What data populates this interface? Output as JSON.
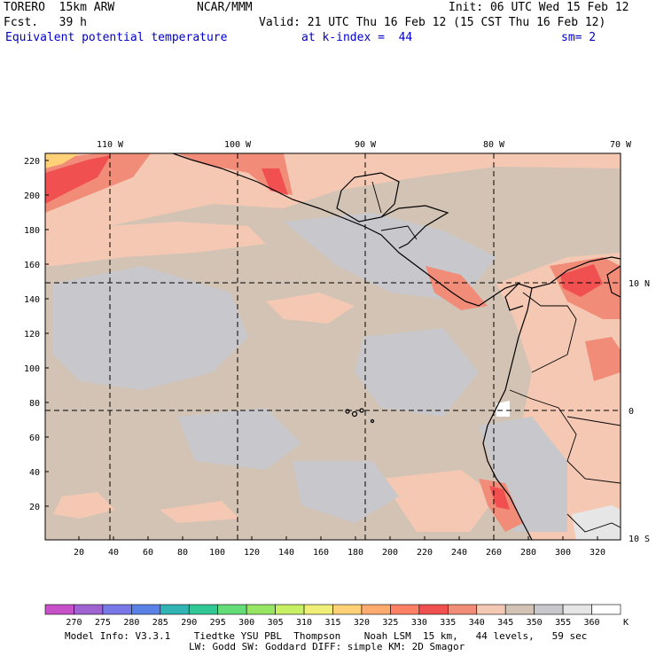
{
  "header": {
    "model": "TORERO  15km ARW",
    "org": "NCAR/MMM",
    "init": "Init: 06 UTC Wed 15 Feb 12",
    "fcst_label": "Fcst.   39 h",
    "valid": "Valid: 21 UTC Thu 16 Feb 12 (15 CST Thu 16 Feb 12)",
    "field": "Equivalent potential temperature",
    "level": "at k-index =  44",
    "smooth": "sm= 2"
  },
  "map": {
    "lon_labels": [
      "110 W",
      "100 W",
      "90 W",
      "80 W",
      "70 W"
    ],
    "lat_labels": [
      "10 N",
      "0",
      "10 S"
    ],
    "y_ticks": [
      "220",
      "200",
      "180",
      "160",
      "140",
      "120",
      "100",
      "80",
      "60",
      "40",
      "20"
    ],
    "x_ticks": [
      "20",
      "40",
      "60",
      "80",
      "100",
      "120",
      "140",
      "160",
      "180",
      "200",
      "220",
      "240",
      "260",
      "280",
      "300",
      "320"
    ]
  },
  "colorbar": {
    "unit": "K",
    "labels": [
      "270",
      "275",
      "280",
      "285",
      "290",
      "295",
      "300",
      "305",
      "310",
      "315",
      "320",
      "325",
      "330",
      "335",
      "340",
      "345",
      "350",
      "355",
      "360"
    ],
    "colors": [
      "#c850c8",
      "#a064d2",
      "#7878e6",
      "#5a82e6",
      "#32b4b4",
      "#32c896",
      "#64dc78",
      "#96e664",
      "#c8f064",
      "#f0f078",
      "#ffd278",
      "#ffaa6e",
      "#ff8064",
      "#f05050",
      "#f08c78",
      "#f5c8b4",
      "#d2c3b4",
      "#c8c8cc",
      "#e6e6e6",
      "#ffffff"
    ]
  },
  "footer": {
    "line1": "Model Info: V3.3.1    Tiedtke YSU PBL  Thompson    Noah LSM  15 km,   44 levels,   59 sec",
    "line2": "LW: Godd SW: Goddard DIFF: simple KM: 2D Smagor"
  }
}
